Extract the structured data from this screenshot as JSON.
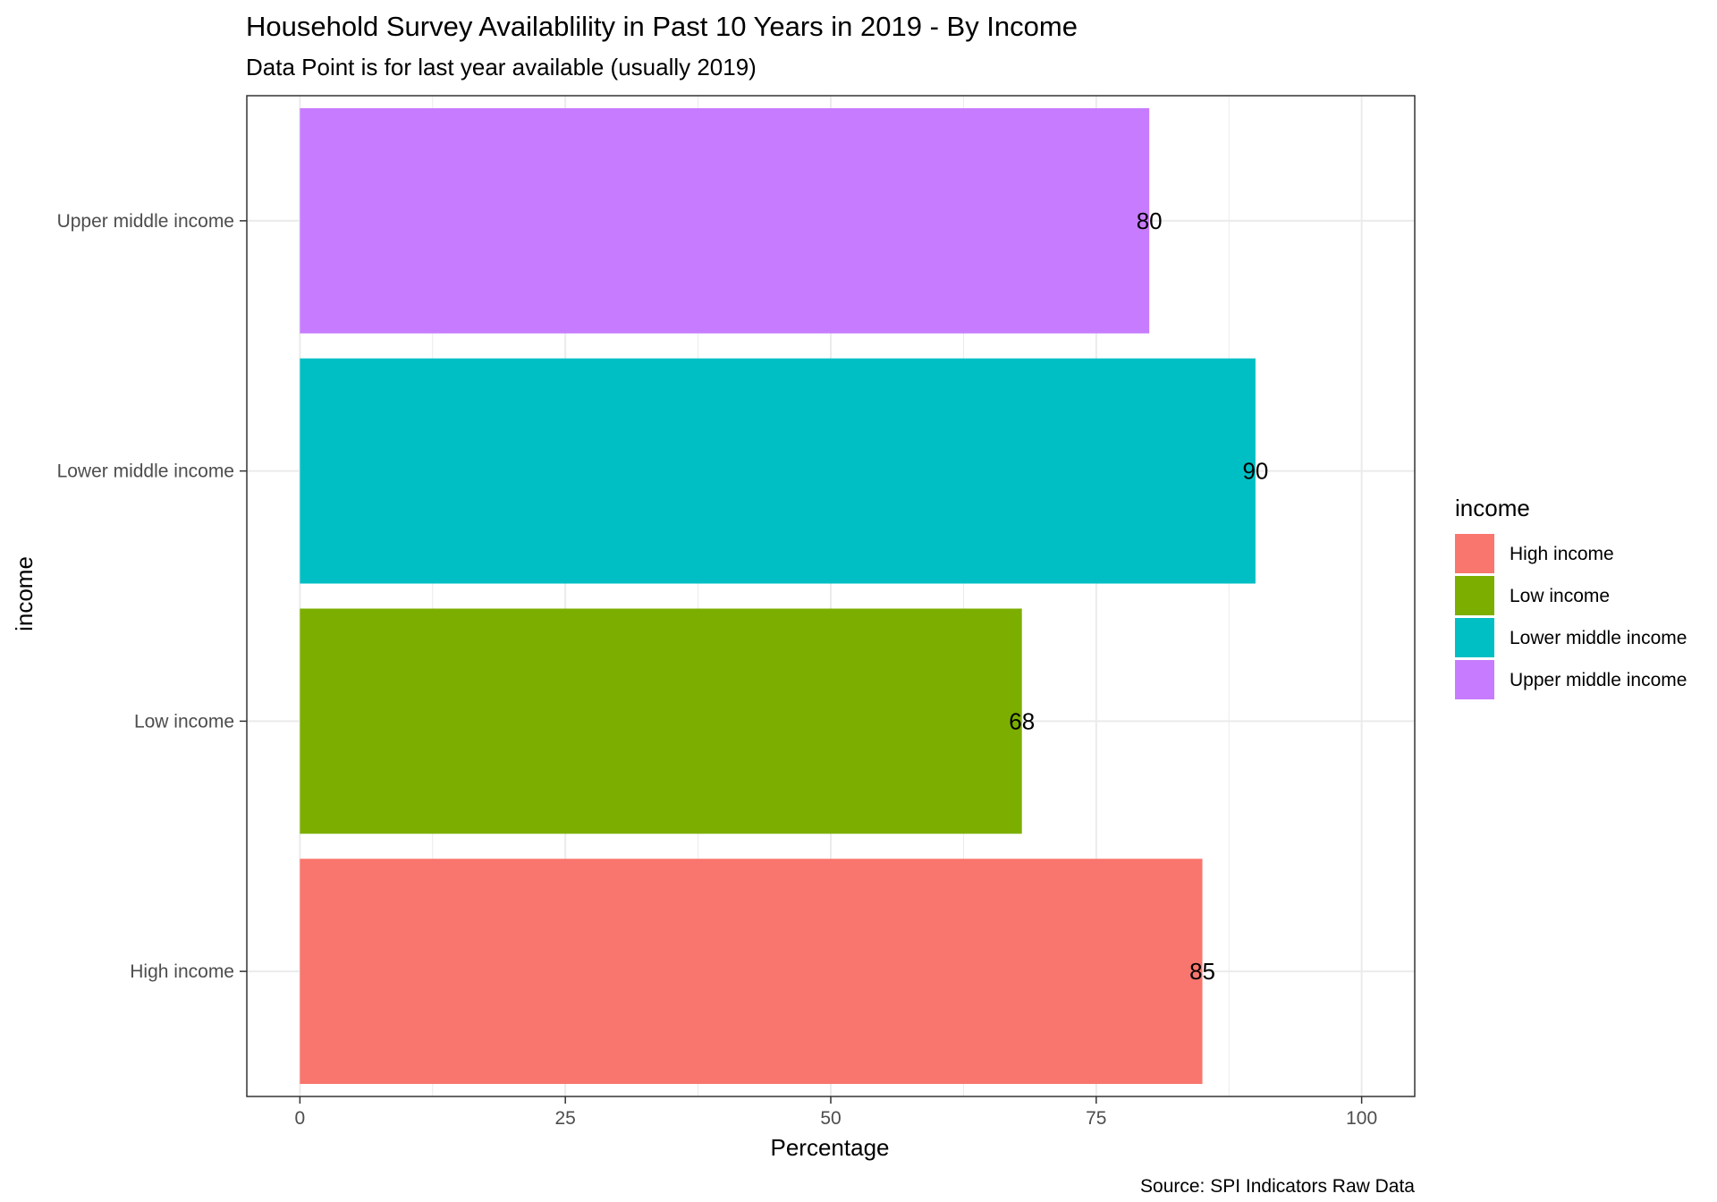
{
  "chart_data": {
    "type": "bar",
    "orientation": "horizontal",
    "title": "Household Survey Availablility in Past 10 Years in 2019 - By Income",
    "subtitle": "Data Point is for last year available (usually 2019)",
    "xlabel": "Percentage",
    "ylabel": "income",
    "caption": "Source: SPI Indicators Raw Data",
    "categories": [
      "High income",
      "Low income",
      "Lower middle income",
      "Upper middle income"
    ],
    "values": [
      85,
      68,
      90,
      80
    ],
    "data_labels": [
      "85",
      "68",
      "90",
      "80"
    ],
    "colors": [
      "#F8766D",
      "#7CAE00",
      "#00BFC4",
      "#C77CFF"
    ],
    "xlim": [
      -5,
      105
    ],
    "xticks": [
      0,
      25,
      50,
      75,
      100
    ],
    "xtick_labels": [
      "0",
      "25",
      "50",
      "75",
      "100"
    ],
    "grid": true,
    "legend": {
      "title": "income",
      "placement": "right",
      "entries": [
        "High income",
        "Low income",
        "Lower middle income",
        "Upper middle income"
      ]
    }
  }
}
